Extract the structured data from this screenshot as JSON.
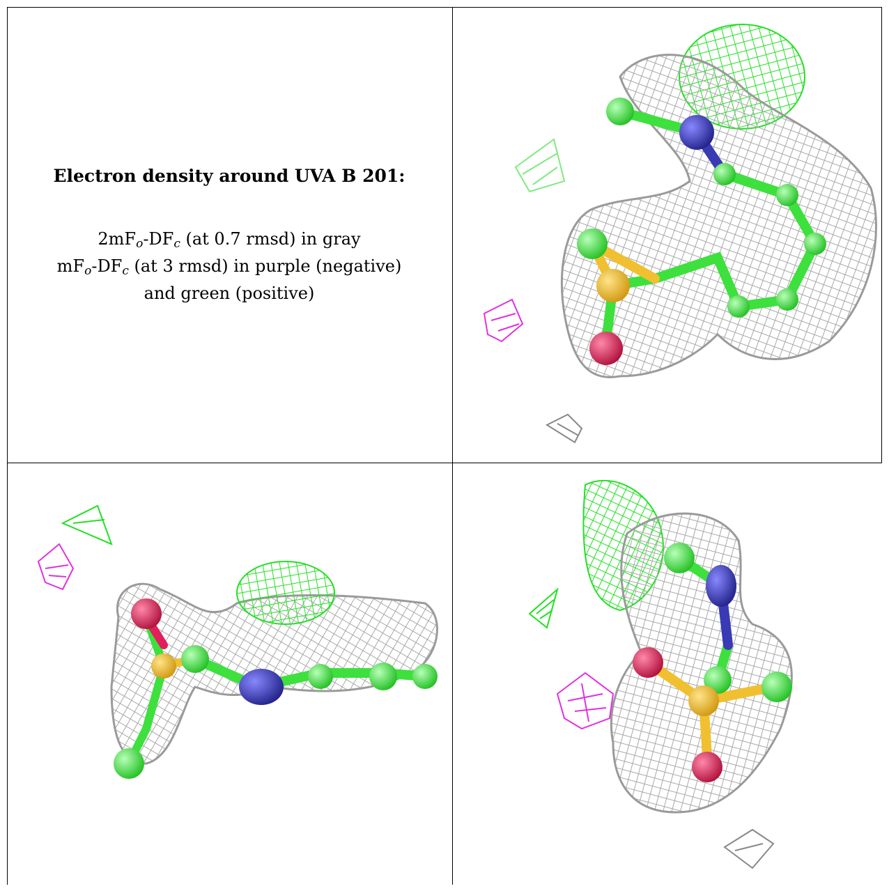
{
  "caption": {
    "title": "Electron density around UVA B 201:",
    "line1": {
      "a": "2mF",
      "b": "o",
      "c": "-DF",
      "d": "c",
      "e": " (at 0.7 rmsd) in gray"
    },
    "line2": {
      "a": "mF",
      "b": "o",
      "c": "-DF",
      "d": "c",
      "e": " (at 3 rmsd) in purple (negative)"
    },
    "line3": "and green (positive)"
  },
  "legend_colors": {
    "map_2fofc": "#b5b5b5",
    "map_fofc_negative": "#e030e0",
    "map_fofc_positive": "#22e022",
    "atom_carbon": "#3ee03e",
    "atom_nitrogen": "#3a3ab4",
    "atom_oxygen": "#e0205a",
    "atom_sulfur": "#f0c030"
  },
  "panels": [
    {
      "id": "view-1"
    },
    {
      "id": "view-2"
    },
    {
      "id": "view-3"
    }
  ]
}
